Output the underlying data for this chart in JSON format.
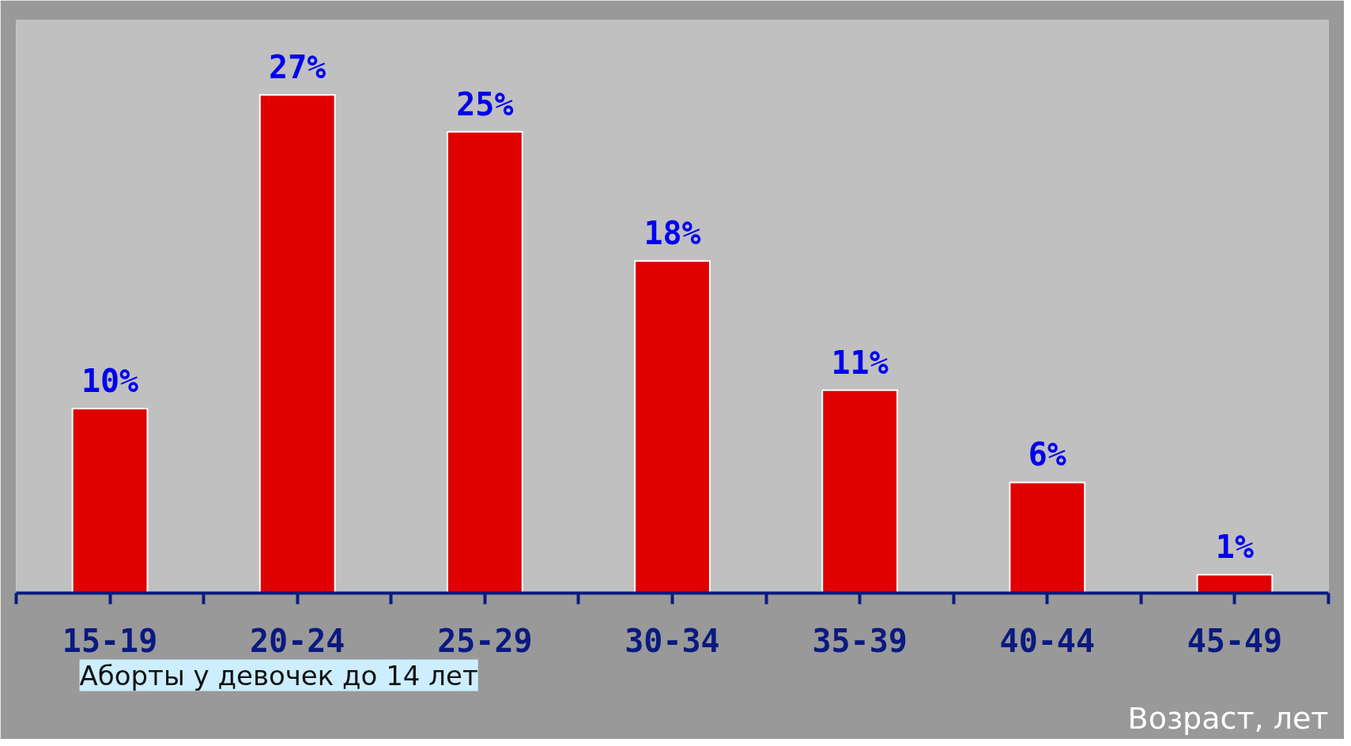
{
  "chart_data": {
    "type": "bar",
    "categories": [
      "15-19",
      "20-24",
      "25-29",
      "30-34",
      "35-39",
      "40-44",
      "45-49"
    ],
    "values": [
      10,
      27,
      25,
      18,
      11,
      6,
      1
    ],
    "color": "#e00000",
    "value_labels": [
      "10%",
      "27%",
      "25%",
      "18%",
      "11%",
      "6%",
      "1%"
    ],
    "grid": false,
    "xlabel": "Возраст, лет",
    "annotations": [
      "Аборты у девочек до 14 лет"
    ]
  }
}
